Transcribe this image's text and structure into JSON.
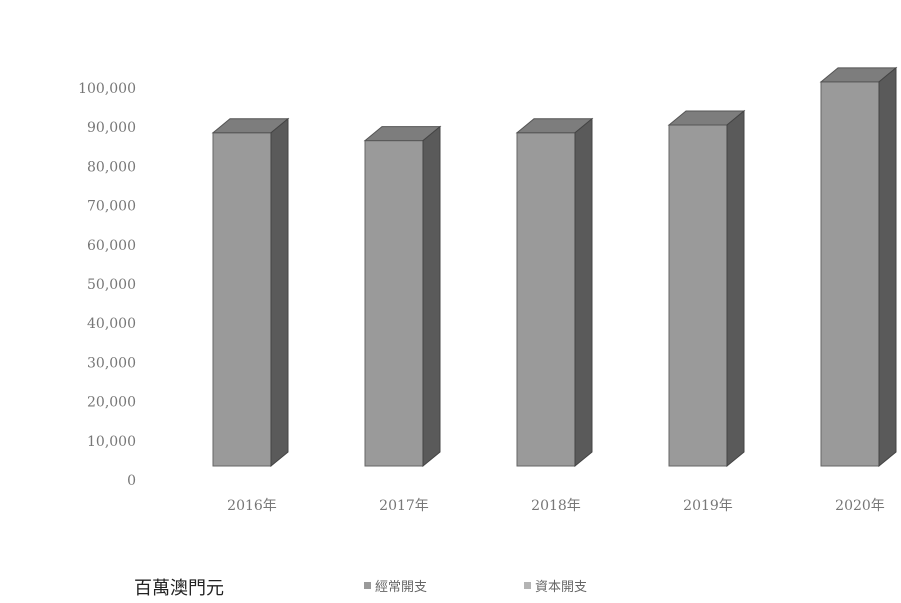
{
  "chart_data": {
    "type": "bar",
    "categories": [
      "2016年",
      "2017年",
      "2018年",
      "2019年",
      "2020年"
    ],
    "series": [
      {
        "values": [
          85000,
          83000,
          85000,
          87000,
          98000
        ],
        "color": "#9a9a9a",
        "stack": "lower"
      },
      {
        "values": [
          0,
          0,
          0,
          0,
          0
        ],
        "color": "#b4b4b4",
        "stack": "upper"
      }
    ],
    "yticks": [
      "0",
      "10,000",
      "20,000",
      "30,000",
      "40,000",
      "50,000",
      "60,000",
      "70,000",
      "80,000",
      "90,000",
      "100,000"
    ],
    "ylim": [
      0,
      100000
    ],
    "legend": {
      "position": "bottom",
      "entries": [
        "經常開支",
        "資本開支"
      ]
    },
    "unit_label": "百萬澳門元",
    "grid": false,
    "style": "3d-column"
  }
}
